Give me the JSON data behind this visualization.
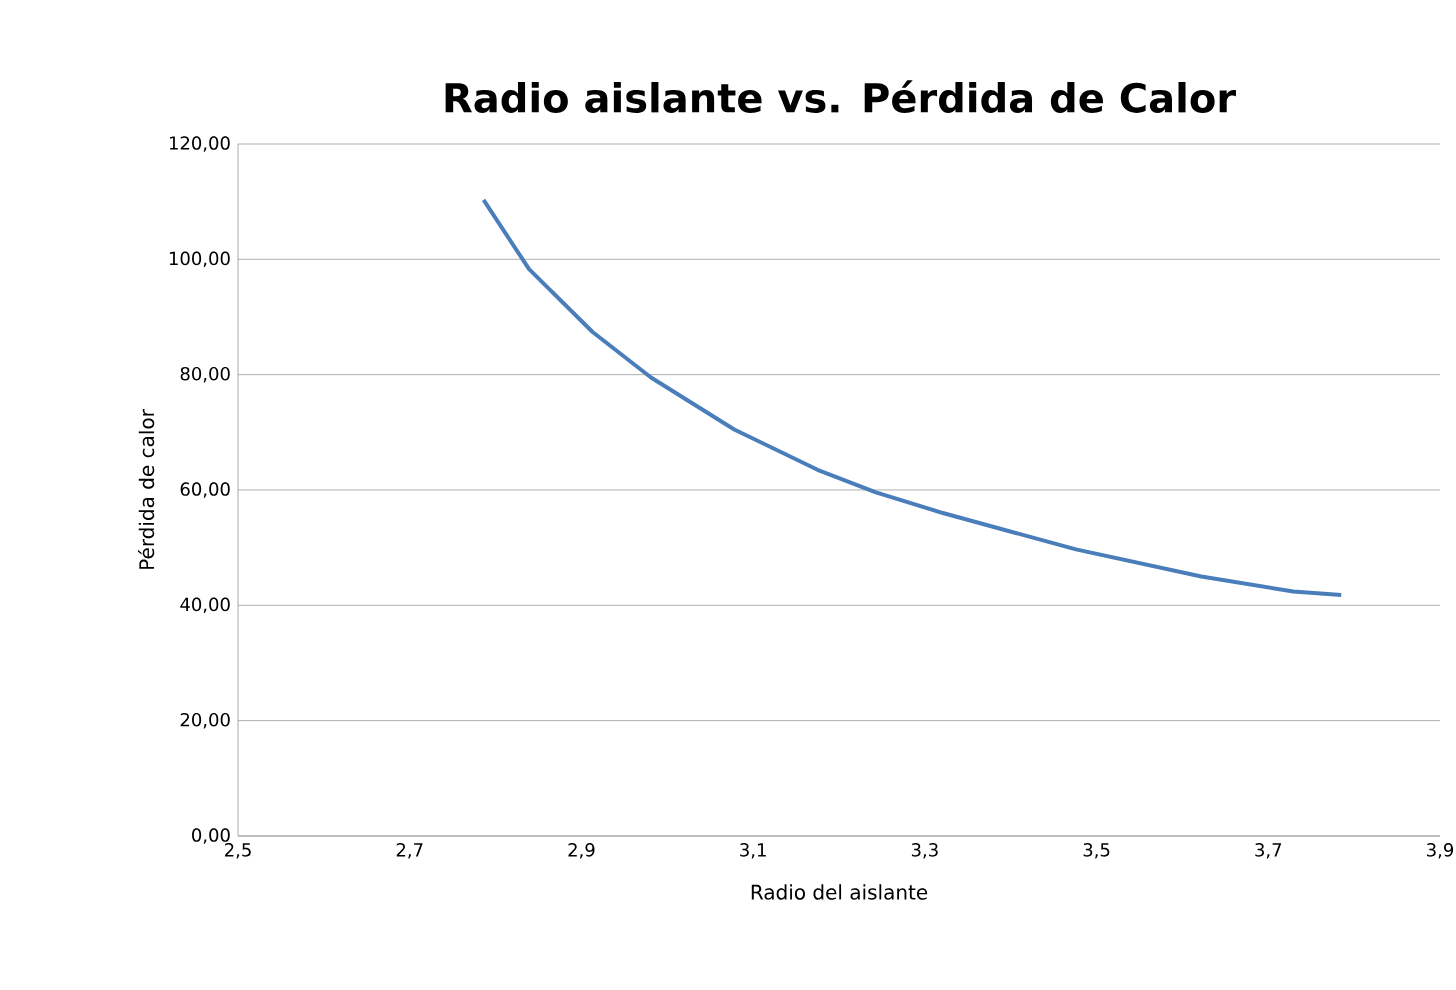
{
  "chart_data": {
    "type": "line",
    "title": "Radio aislante vs. Pérdida de Calor",
    "xlabel": "Radio del aislante",
    "ylabel": "Pérdida de calor",
    "series": [
      {
        "color": "#4a7ebb",
        "x": [
          2.786,
          2.839,
          2.913,
          2.981,
          3.078,
          3.175,
          3.243,
          3.321,
          3.476,
          3.622,
          3.729,
          3.785
        ],
        "values": [
          110.3,
          98.3,
          87.4,
          79.5,
          70.5,
          63.5,
          59.6,
          56.0,
          49.7,
          45.0,
          42.4,
          41.8
        ]
      }
    ],
    "xlim": [
      2.5,
      3.9
    ],
    "xticks": [
      {
        "value": 2.5,
        "label": "2,5"
      },
      {
        "value": 2.7,
        "label": "2,7"
      },
      {
        "value": 2.9,
        "label": "2,9"
      },
      {
        "value": 3.1,
        "label": "3,1"
      },
      {
        "value": 3.3,
        "label": "3,3"
      },
      {
        "value": 3.5,
        "label": "3,5"
      },
      {
        "value": 3.7,
        "label": "3,7"
      },
      {
        "value": 3.9,
        "label": "3,9"
      }
    ],
    "ylim": [
      0,
      120
    ],
    "yticks": [
      {
        "value": 0,
        "label": "0,00"
      },
      {
        "value": 20,
        "label": "20,00"
      },
      {
        "value": 40,
        "label": "40,00"
      },
      {
        "value": 60,
        "label": "60,00"
      },
      {
        "value": 80,
        "label": "80,00"
      },
      {
        "value": 100,
        "label": "100,00"
      },
      {
        "value": 120,
        "label": "120,00"
      }
    ],
    "grid": "y",
    "marker": "none",
    "line_style": "solid"
  }
}
